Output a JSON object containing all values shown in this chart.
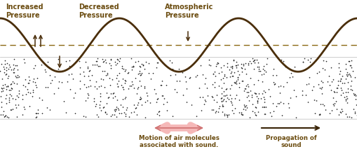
{
  "bg_color": "#ffffff",
  "wave_color": "#4a2e0a",
  "dashed_line_color": "#8B6914",
  "dot_color": "#222222",
  "text_color": "#6b4c10",
  "arrow_color_pink_fill": "#f5b8b8",
  "arrow_color_pink_edge": "#d07070",
  "arrow_color_dark": "#3a2508",
  "wave_amplitude": 0.28,
  "wave_frequency": 3.0,
  "wave_phase": 1.5707963,
  "labels": {
    "increased_pressure": "Increased\nPressure",
    "decreased_pressure": "Decreased\nPressure",
    "atmospheric_pressure": "Atmospheric\nPressure",
    "motion_label": "Motion of air molecules\nassociated with sound.",
    "propagation_label": "Propagation of\nsound"
  }
}
